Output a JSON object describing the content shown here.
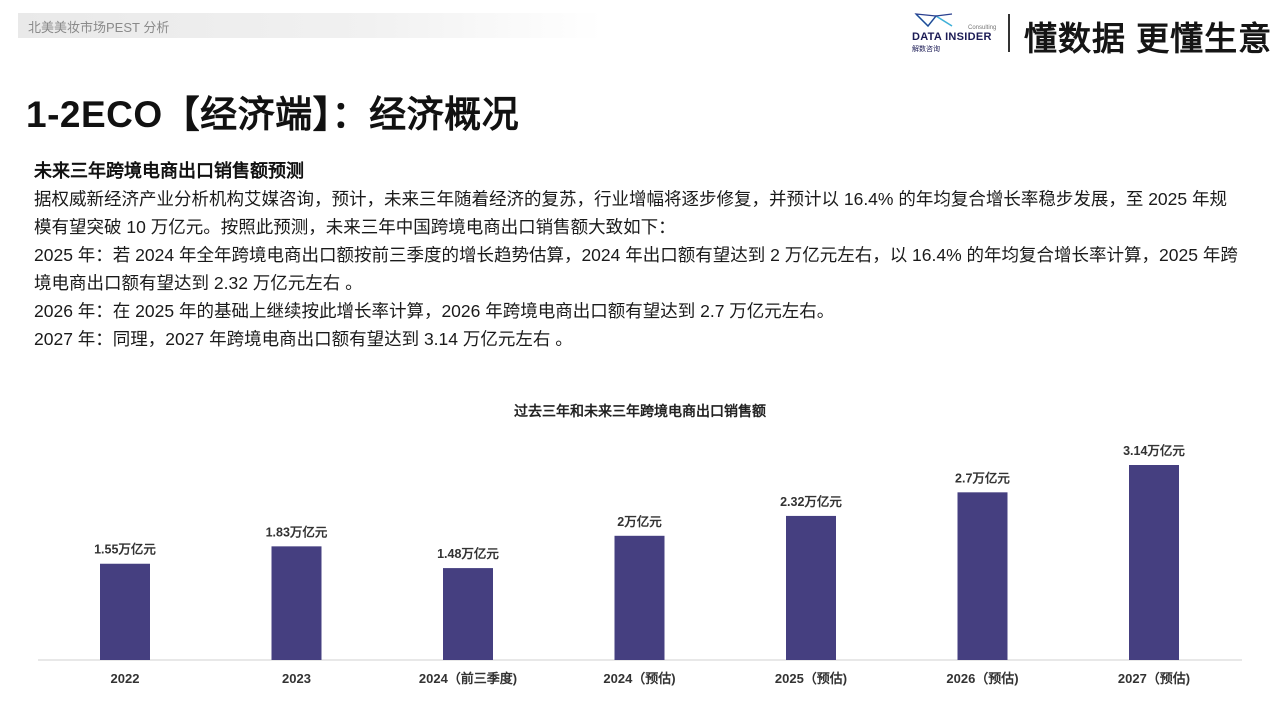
{
  "header": {
    "tag": "北美美妆市场PEST 分析",
    "logo_text": "DATA INSIDER",
    "logo_cn": "解数咨询",
    "logo_small": "Consulting",
    "slogan": "懂数据 更懂生意"
  },
  "title": "1-2ECO【经济端】：经济概况",
  "section": {
    "heading": "未来三年跨境电商出口销售额预测",
    "paragraphs": [
      "据权威新经济产业分析机构艾媒咨询，预计，未来三年随着经济的复苏，行业增幅将逐步修复，并预计以 16.4% 的年均复合增长率稳步发展，至 2025 年规模有望突破 10 万亿元。按照此预测，未来三年中国跨境电商出口销售额大致如下：",
      "2025 年：若 2024 年全年跨境电商出口额按前三季度的增长趋势估算，2024 年出口额有望达到 2 万亿元左右，以 16.4% 的年均复合增长率计算，2025 年跨境电商出口额有望达到 2.32 万亿元左右 。",
      "2026 年：在 2025 年的基础上继续按此增长率计算，2026 年跨境电商出口额有望达到 2.7 万亿元左右。",
      "2027 年：同理，2027 年跨境电商出口额有望达到 3.14 万亿元左右 。"
    ]
  },
  "colors": {
    "bar": "#453f80",
    "axis": "#d0d0d0"
  },
  "chart_data": {
    "type": "bar",
    "title": "过去三年和未来三年跨境电商出口销售额",
    "categories": [
      "2022",
      "2023",
      "2024（前三季度)",
      "2024（预估)",
      "2025（预估)",
      "2026（预估)",
      "2027（预估)"
    ],
    "values": [
      1.55,
      1.83,
      1.48,
      2.0,
      2.32,
      2.7,
      3.14
    ],
    "data_labels": [
      "1.55万亿元",
      "1.83万亿元",
      "1.48万亿元",
      "2万亿元",
      "2.32万亿元",
      "2.7万亿元",
      "3.14万亿元"
    ],
    "xlabel": "",
    "ylabel": "",
    "ylim": [
      0,
      3.14
    ],
    "grid": false,
    "legend": "none"
  }
}
